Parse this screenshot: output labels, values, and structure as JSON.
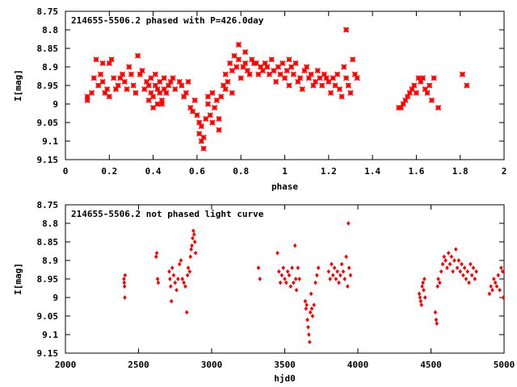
{
  "chart_data": [
    {
      "type": "scatter",
      "title": "214655-5506.2 phased with P=426.0day",
      "xlabel": "phase",
      "ylabel": "I[mag]",
      "xlim": [
        0,
        2
      ],
      "ylim": [
        9.15,
        8.75
      ],
      "y_inverted": true,
      "x_ticks": [
        "0",
        "0.2",
        "0.4",
        "0.6",
        "0.8",
        "1",
        "1.2",
        "1.4",
        "1.6",
        "1.8",
        "2"
      ],
      "y_ticks": [
        "8.75",
        "8.8",
        "8.85",
        "8.9",
        "8.95",
        "9",
        "9.05",
        "9.1",
        "9.15"
      ],
      "marker": "star",
      "color": "#ff0000",
      "points": [
        [
          0.1,
          8.98
        ],
        [
          0.1,
          8.99
        ],
        [
          0.12,
          8.97
        ],
        [
          0.13,
          8.93
        ],
        [
          0.14,
          8.88
        ],
        [
          0.15,
          8.95
        ],
        [
          0.16,
          8.92
        ],
        [
          0.17,
          8.94
        ],
        [
          0.17,
          8.89
        ],
        [
          0.18,
          8.97
        ],
        [
          0.19,
          8.96
        ],
        [
          0.2,
          8.98
        ],
        [
          0.2,
          8.89
        ],
        [
          0.21,
          8.88
        ],
        [
          0.22,
          8.93
        ],
        [
          0.23,
          8.96
        ],
        [
          0.24,
          8.95
        ],
        [
          0.25,
          8.93
        ],
        [
          0.26,
          8.92
        ],
        [
          0.27,
          8.94
        ],
        [
          0.28,
          8.96
        ],
        [
          0.29,
          8.9
        ],
        [
          0.3,
          8.92
        ],
        [
          0.31,
          8.95
        ],
        [
          0.32,
          8.97
        ],
        [
          0.33,
          8.87
        ],
        [
          0.34,
          8.92
        ],
        [
          0.35,
          8.91
        ],
        [
          0.36,
          8.96
        ],
        [
          0.37,
          8.94
        ],
        [
          0.38,
          8.95
        ],
        [
          0.38,
          8.99
        ],
        [
          0.39,
          8.93
        ],
        [
          0.39,
          8.97
        ],
        [
          0.4,
          8.98
        ],
        [
          0.4,
          9.01
        ],
        [
          0.41,
          8.92
        ],
        [
          0.41,
          8.95
        ],
        [
          0.42,
          8.96
        ],
        [
          0.42,
          9.0
        ],
        [
          0.43,
          8.97
        ],
        [
          0.43,
          8.94
        ],
        [
          0.44,
          8.99
        ],
        [
          0.44,
          9.0
        ],
        [
          0.45,
          8.96
        ],
        [
          0.45,
          8.93
        ],
        [
          0.46,
          8.97
        ],
        [
          0.47,
          8.95
        ],
        [
          0.48,
          8.94
        ],
        [
          0.49,
          8.93
        ],
        [
          0.5,
          8.96
        ],
        [
          0.52,
          8.94
        ],
        [
          0.53,
          8.95
        ],
        [
          0.54,
          8.98
        ],
        [
          0.55,
          8.97
        ],
        [
          0.56,
          8.94
        ],
        [
          0.57,
          9.01
        ],
        [
          0.58,
          9.02
        ],
        [
          0.59,
          8.99
        ],
        [
          0.6,
          9.03
        ],
        [
          0.61,
          9.05
        ],
        [
          0.61,
          9.08
        ],
        [
          0.62,
          9.06
        ],
        [
          0.62,
          9.1
        ],
        [
          0.63,
          9.12
        ],
        [
          0.63,
          9.09
        ],
        [
          0.64,
          9.04
        ],
        [
          0.65,
          8.98
        ],
        [
          0.65,
          9.0
        ],
        [
          0.66,
          9.03
        ],
        [
          0.67,
          8.97
        ],
        [
          0.67,
          9.05
        ],
        [
          0.68,
          9.01
        ],
        [
          0.69,
          8.99
        ],
        [
          0.7,
          9.04
        ],
        [
          0.7,
          9.07
        ],
        [
          0.71,
          8.98
        ],
        [
          0.72,
          8.95
        ],
        [
          0.73,
          8.92
        ],
        [
          0.73,
          8.96
        ],
        [
          0.74,
          8.94
        ],
        [
          0.75,
          8.89
        ],
        [
          0.76,
          8.91
        ],
        [
          0.76,
          8.97
        ],
        [
          0.77,
          8.87
        ],
        [
          0.78,
          8.9
        ],
        [
          0.79,
          8.88
        ],
        [
          0.79,
          8.84
        ],
        [
          0.8,
          8.93
        ],
        [
          0.81,
          8.9
        ],
        [
          0.82,
          8.89
        ],
        [
          0.82,
          8.86
        ],
        [
          0.83,
          8.91
        ],
        [
          0.84,
          8.92
        ],
        [
          0.85,
          8.88
        ],
        [
          0.86,
          8.89
        ],
        [
          0.87,
          8.89
        ],
        [
          0.88,
          8.92
        ],
        [
          0.89,
          8.9
        ],
        [
          0.9,
          8.91
        ],
        [
          0.91,
          8.89
        ],
        [
          0.92,
          8.9
        ],
        [
          0.93,
          8.92
        ],
        [
          0.94,
          8.88
        ],
        [
          0.95,
          8.91
        ],
        [
          0.96,
          8.94
        ],
        [
          0.97,
          8.9
        ],
        [
          0.98,
          8.92
        ],
        [
          0.99,
          8.89
        ],
        [
          1.0,
          8.93
        ],
        [
          1.01,
          8.91
        ],
        [
          1.02,
          8.88
        ],
        [
          1.02,
          8.95
        ],
        [
          1.03,
          8.9
        ],
        [
          1.04,
          8.92
        ],
        [
          1.05,
          8.89
        ],
        [
          1.06,
          8.94
        ],
        [
          1.07,
          8.93
        ],
        [
          1.08,
          8.96
        ],
        [
          1.09,
          8.91
        ],
        [
          1.1,
          8.9
        ],
        [
          1.11,
          8.93
        ],
        [
          1.12,
          8.92
        ],
        [
          1.13,
          8.95
        ],
        [
          1.14,
          8.94
        ],
        [
          1.15,
          8.91
        ],
        [
          1.16,
          8.93
        ],
        [
          1.17,
          8.95
        ],
        [
          1.18,
          8.92
        ],
        [
          1.19,
          8.93
        ],
        [
          1.2,
          8.94
        ],
        [
          1.21,
          8.97
        ],
        [
          1.22,
          8.93
        ],
        [
          1.23,
          8.95
        ],
        [
          1.24,
          8.92
        ],
        [
          1.25,
          8.96
        ],
        [
          1.26,
          8.98
        ],
        [
          1.27,
          8.9
        ],
        [
          1.28,
          8.8
        ],
        [
          1.28,
          8.93
        ],
        [
          1.29,
          8.95
        ],
        [
          1.3,
          8.97
        ],
        [
          1.31,
          8.88
        ],
        [
          1.32,
          8.92
        ],
        [
          1.33,
          8.93
        ],
        [
          1.52,
          9.01
        ],
        [
          1.53,
          9.01
        ],
        [
          1.54,
          9.0
        ],
        [
          1.55,
          8.99
        ],
        [
          1.56,
          8.98
        ],
        [
          1.57,
          8.97
        ],
        [
          1.58,
          8.96
        ],
        [
          1.59,
          8.95
        ],
        [
          1.6,
          8.97
        ],
        [
          1.61,
          8.93
        ],
        [
          1.62,
          8.94
        ],
        [
          1.63,
          8.93
        ],
        [
          1.64,
          8.96
        ],
        [
          1.65,
          8.97
        ],
        [
          1.66,
          8.95
        ],
        [
          1.67,
          8.99
        ],
        [
          1.68,
          8.93
        ],
        [
          1.7,
          9.01
        ],
        [
          1.81,
          8.92
        ],
        [
          1.83,
          8.95
        ]
      ]
    },
    {
      "type": "scatter",
      "title": "214655-5506.2 not phased light curve",
      "xlabel": "hjd0",
      "ylabel": "I[mag]",
      "xlim": [
        2000,
        5000
      ],
      "ylim": [
        9.15,
        8.75
      ],
      "y_inverted": true,
      "x_ticks": [
        "2000",
        "2500",
        "3000",
        "3500",
        "4000",
        "4500",
        "5000"
      ],
      "y_ticks": [
        "8.75",
        "8.8",
        "8.85",
        "8.9",
        "8.95",
        "9",
        "9.05",
        "9.1",
        "9.15"
      ],
      "marker": "diamond",
      "color": "#ff0000",
      "points": [
        [
          2400,
          8.95
        ],
        [
          2402,
          8.96
        ],
        [
          2404,
          8.97
        ],
        [
          2406,
          9.0
        ],
        [
          2408,
          8.94
        ],
        [
          2620,
          8.89
        ],
        [
          2625,
          8.88
        ],
        [
          2630,
          8.95
        ],
        [
          2635,
          8.96
        ],
        [
          2710,
          8.93
        ],
        [
          2715,
          8.95
        ],
        [
          2720,
          8.97
        ],
        [
          2725,
          9.01
        ],
        [
          2730,
          8.92
        ],
        [
          2740,
          8.94
        ],
        [
          2750,
          8.96
        ],
        [
          2760,
          8.98
        ],
        [
          2770,
          8.95
        ],
        [
          2780,
          8.91
        ],
        [
          2790,
          8.9
        ],
        [
          2800,
          8.95
        ],
        [
          2810,
          8.96
        ],
        [
          2820,
          8.97
        ],
        [
          2830,
          9.04
        ],
        [
          2835,
          8.94
        ],
        [
          2840,
          8.92
        ],
        [
          2850,
          8.93
        ],
        [
          2855,
          8.89
        ],
        [
          2860,
          8.87
        ],
        [
          2865,
          8.86
        ],
        [
          2870,
          8.84
        ],
        [
          2875,
          8.82
        ],
        [
          2880,
          8.83
        ],
        [
          2885,
          8.85
        ],
        [
          2890,
          8.88
        ],
        [
          3320,
          8.92
        ],
        [
          3330,
          8.95
        ],
        [
          3450,
          8.88
        ],
        [
          3460,
          8.93
        ],
        [
          3470,
          8.96
        ],
        [
          3480,
          8.94
        ],
        [
          3490,
          8.92
        ],
        [
          3500,
          8.95
        ],
        [
          3510,
          8.96
        ],
        [
          3520,
          8.93
        ],
        [
          3530,
          8.94
        ],
        [
          3540,
          8.97
        ],
        [
          3550,
          8.92
        ],
        [
          3560,
          8.96
        ],
        [
          3570,
          8.86
        ],
        [
          3575,
          8.95
        ],
        [
          3580,
          8.98
        ],
        [
          3590,
          8.92
        ],
        [
          3600,
          8.95
        ],
        [
          3640,
          9.01
        ],
        [
          3645,
          9.03
        ],
        [
          3650,
          9.02
        ],
        [
          3655,
          9.06
        ],
        [
          3660,
          9.08
        ],
        [
          3665,
          9.1
        ],
        [
          3670,
          9.12
        ],
        [
          3675,
          9.04
        ],
        [
          3680,
          8.99
        ],
        [
          3685,
          9.03
        ],
        [
          3690,
          9.05
        ],
        [
          3700,
          9.02
        ],
        [
          3710,
          8.96
        ],
        [
          3720,
          8.94
        ],
        [
          3730,
          8.92
        ],
        [
          3800,
          8.93
        ],
        [
          3810,
          8.95
        ],
        [
          3820,
          8.91
        ],
        [
          3830,
          8.94
        ],
        [
          3840,
          8.92
        ],
        [
          3850,
          8.95
        ],
        [
          3860,
          8.93
        ],
        [
          3870,
          8.96
        ],
        [
          3880,
          8.94
        ],
        [
          3890,
          8.91
        ],
        [
          3900,
          8.93
        ],
        [
          3910,
          8.95
        ],
        [
          3920,
          8.89
        ],
        [
          3930,
          8.97
        ],
        [
          3935,
          8.8
        ],
        [
          3940,
          8.92
        ],
        [
          3950,
          8.94
        ],
        [
          4420,
          8.99
        ],
        [
          4425,
          9.0
        ],
        [
          4430,
          9.01
        ],
        [
          4435,
          9.02
        ],
        [
          4440,
          8.97
        ],
        [
          4445,
          8.96
        ],
        [
          4450,
          8.98
        ],
        [
          4455,
          8.95
        ],
        [
          4460,
          9.0
        ],
        [
          4530,
          9.04
        ],
        [
          4535,
          9.06
        ],
        [
          4540,
          9.07
        ],
        [
          4545,
          8.97
        ],
        [
          4550,
          8.95
        ],
        [
          4560,
          8.96
        ],
        [
          4570,
          8.93
        ],
        [
          4580,
          8.91
        ],
        [
          4590,
          8.89
        ],
        [
          4600,
          8.9
        ],
        [
          4610,
          8.92
        ],
        [
          4620,
          8.88
        ],
        [
          4630,
          8.91
        ],
        [
          4640,
          8.89
        ],
        [
          4650,
          8.93
        ],
        [
          4660,
          8.9
        ],
        [
          4670,
          8.87
        ],
        [
          4680,
          8.92
        ],
        [
          4690,
          8.9
        ],
        [
          4700,
          8.93
        ],
        [
          4710,
          8.91
        ],
        [
          4720,
          8.94
        ],
        [
          4730,
          8.92
        ],
        [
          4740,
          8.95
        ],
        [
          4750,
          8.93
        ],
        [
          4760,
          8.96
        ],
        [
          4770,
          8.91
        ],
        [
          4780,
          8.94
        ],
        [
          4790,
          8.92
        ],
        [
          4800,
          8.95
        ],
        [
          4810,
          8.93
        ],
        [
          4900,
          8.99
        ],
        [
          4910,
          8.97
        ],
        [
          4920,
          8.98
        ],
        [
          4930,
          8.95
        ],
        [
          4940,
          8.96
        ],
        [
          4950,
          8.97
        ],
        [
          4960,
          8.94
        ],
        [
          4970,
          8.98
        ],
        [
          4980,
          8.92
        ],
        [
          4990,
          8.93
        ],
        [
          4995,
          9.0
        ]
      ]
    }
  ]
}
